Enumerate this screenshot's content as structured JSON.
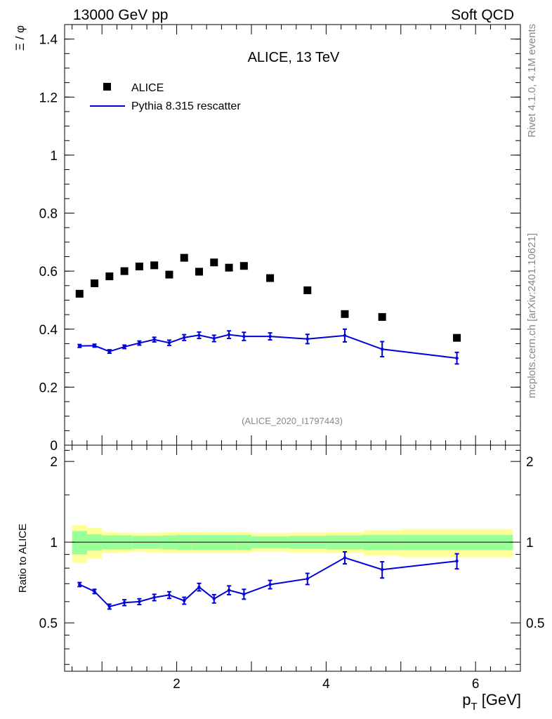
{
  "header": {
    "left": "13000 GeV pp",
    "right": "Soft QCD"
  },
  "side": {
    "rivet": "Rivet 4.1.0,  4.1M events",
    "mcplots": "mcplots.cern.ch [arXiv:2401.10621]"
  },
  "colors": {
    "mc": "#0000dd",
    "data": "#000000",
    "band_inner": "#99ff99",
    "band_outer": "#ffff99"
  },
  "chart_data": [
    {
      "type": "scatter",
      "title": "ALICE, 13 TeV",
      "analysis": "(ALICE_2020_I1797443)",
      "xlabel": "",
      "ylabel": "Ξ / φ",
      "xlim": [
        0.5,
        6.6
      ],
      "ylim": [
        0,
        1.45
      ],
      "yticks": [
        0,
        0.2,
        0.4,
        0.6,
        0.8,
        1,
        1.2,
        1.4
      ],
      "ytick_labels": [
        "0",
        "0.2",
        "0.4",
        "0.6",
        "0.8",
        "1",
        "1.2",
        "1.4"
      ],
      "legend": [
        "ALICE",
        "Pythia 8.315 rescatter"
      ],
      "legend_position": "top-left",
      "x_edges": [
        0.6,
        0.8,
        1.0,
        1.2,
        1.4,
        1.6,
        1.8,
        2.0,
        2.2,
        2.4,
        2.6,
        2.8,
        3.0,
        3.5,
        4.0,
        4.5,
        5.0,
        6.5
      ],
      "series": [
        {
          "name": "ALICE",
          "x": [
            0.7,
            0.9,
            1.1,
            1.3,
            1.5,
            1.7,
            1.9,
            2.1,
            2.3,
            2.5,
            2.7,
            2.9,
            3.25,
            3.75,
            4.25,
            4.75,
            5.75
          ],
          "y": [
            0.522,
            0.558,
            0.582,
            0.6,
            0.616,
            0.62,
            0.588,
            0.646,
            0.598,
            0.63,
            0.612,
            0.618,
            0.576,
            0.534,
            0.452,
            0.442,
            0.37
          ]
        },
        {
          "name": "Pythia 8.315 rescatter",
          "x": [
            0.7,
            0.9,
            1.1,
            1.3,
            1.5,
            1.7,
            1.9,
            2.1,
            2.3,
            2.5,
            2.7,
            2.9,
            3.25,
            3.75,
            4.25,
            4.75,
            5.75
          ],
          "y": [
            0.342,
            0.343,
            0.323,
            0.339,
            0.352,
            0.364,
            0.353,
            0.371,
            0.379,
            0.368,
            0.381,
            0.375,
            0.375,
            0.366,
            0.378,
            0.331,
            0.3
          ],
          "yerr": [
            0.005,
            0.005,
            0.006,
            0.006,
            0.007,
            0.008,
            0.009,
            0.01,
            0.011,
            0.011,
            0.013,
            0.014,
            0.012,
            0.016,
            0.022,
            0.026,
            0.02
          ]
        }
      ]
    },
    {
      "type": "line",
      "title": "",
      "xlabel": "p_T [GeV]",
      "ylabel": "Ratio to ALICE",
      "xlim": [
        0.5,
        6.6
      ],
      "ylim": [
        0.33,
        2.3
      ],
      "log_y": true,
      "xticks": [
        2,
        4,
        6
      ],
      "xtick_labels": [
        "2",
        "4",
        "6"
      ],
      "yticks": [
        0.5,
        1,
        2
      ],
      "ytick_labels": [
        "0.5",
        "1",
        "2"
      ],
      "x_edges": [
        0.6,
        0.8,
        1.0,
        1.2,
        1.4,
        1.6,
        1.8,
        2.0,
        2.2,
        2.4,
        2.6,
        2.8,
        3.0,
        3.5,
        4.0,
        4.5,
        5.0,
        6.5
      ],
      "band_inner_half": [
        0.1,
        0.07,
        0.06,
        0.06,
        0.055,
        0.055,
        0.06,
        0.065,
        0.065,
        0.065,
        0.065,
        0.065,
        0.05,
        0.055,
        0.06,
        0.065,
        0.065
      ],
      "band_outer_half": [
        0.16,
        0.13,
        0.09,
        0.085,
        0.08,
        0.085,
        0.09,
        0.09,
        0.09,
        0.09,
        0.09,
        0.09,
        0.08,
        0.085,
        0.09,
        0.11,
        0.12
      ],
      "series": [
        {
          "name": "Pythia 8.315 rescatter / ALICE",
          "x": [
            0.7,
            0.9,
            1.1,
            1.3,
            1.5,
            1.7,
            1.9,
            2.1,
            2.3,
            2.5,
            2.7,
            2.9,
            3.25,
            3.75,
            4.25,
            4.75,
            5.75
          ],
          "y": [
            0.695,
            0.655,
            0.575,
            0.595,
            0.6,
            0.622,
            0.635,
            0.605,
            0.68,
            0.615,
            0.662,
            0.64,
            0.695,
            0.73,
            0.875,
            0.79,
            0.85
          ],
          "yerr": [
            0.012,
            0.012,
            0.012,
            0.015,
            0.015,
            0.017,
            0.018,
            0.018,
            0.022,
            0.022,
            0.025,
            0.027,
            0.025,
            0.035,
            0.045,
            0.055,
            0.055
          ]
        }
      ]
    }
  ]
}
